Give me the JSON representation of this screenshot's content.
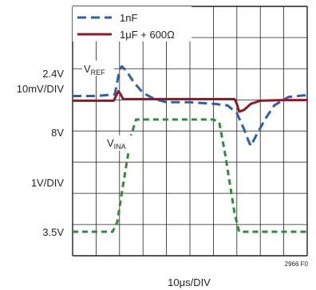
{
  "chart_data": {
    "type": "line",
    "title": "",
    "legend": {
      "placement": "top-left",
      "entries": [
        {
          "name": "1nF",
          "color": "#2f5fa8",
          "style": "dashed"
        },
        {
          "name": "1μF + 600Ω",
          "color": "#8b1a2b",
          "style": "solid"
        }
      ]
    },
    "grid": true,
    "x": {
      "divisions": 10,
      "label": "10μs/DIV"
    },
    "y": {
      "divisions": 8
    },
    "left_labels": [
      {
        "id": "v-ref-offset",
        "text": "2.4V"
      },
      {
        "id": "top-scale",
        "text": "10mV/DIV"
      },
      {
        "id": "v-ina-offset",
        "text": "8V"
      },
      {
        "id": "bottom-scale",
        "text": "1V/DIV"
      },
      {
        "id": "v-ina-low",
        "text": "3.5V"
      }
    ],
    "trace_labels": {
      "vref": {
        "main": "V",
        "sub": "REF"
      },
      "vina": {
        "main": "V",
        "sub": "INA"
      }
    },
    "figure_id": "2966 F0",
    "series": [
      {
        "id": "vref-1nf",
        "name": "1nF",
        "color": "#2f5fa8",
        "style": "dashed",
        "x_div": [
          0,
          1.0,
          1.8,
          1.9,
          2.0,
          2.1,
          2.3,
          2.6,
          3.0,
          3.5,
          4.0,
          5.0,
          6.0,
          6.6,
          7.0,
          7.3,
          7.5,
          7.6,
          7.8,
          8.2,
          8.6,
          9.2,
          10
        ],
        "y_div": [
          0.15,
          0.15,
          0.2,
          0.6,
          1.0,
          1.1,
          0.95,
          0.6,
          0.25,
          0.05,
          -0.05,
          -0.05,
          -0.1,
          -0.15,
          -0.4,
          -0.9,
          -1.3,
          -1.45,
          -1.15,
          -0.6,
          -0.15,
          0.12,
          0.18
        ]
      },
      {
        "id": "vref-1uf-600",
        "name": "1μF + 600Ω",
        "color": "#8b1a2b",
        "style": "solid",
        "x_div": [
          0,
          1.0,
          1.75,
          1.85,
          1.95,
          2.05,
          2.15,
          2.5,
          3.0,
          4.0,
          5.0,
          6.0,
          6.6,
          6.9,
          7.0,
          7.1,
          7.3,
          7.6,
          8.0,
          9.0,
          10
        ],
        "y_div": [
          0.0,
          0.0,
          0.0,
          0.15,
          0.3,
          0.2,
          0.05,
          0.05,
          0.05,
          0.05,
          0.05,
          0.05,
          0.05,
          0.05,
          -0.1,
          -0.35,
          -0.3,
          -0.1,
          0.0,
          0.02,
          0.02
        ]
      },
      {
        "id": "vina",
        "name": "",
        "color": "#2e8b3a",
        "style": "dashed",
        "x_div": [
          0,
          1.7,
          1.9,
          2.15,
          2.5,
          2.7,
          6.0,
          6.25,
          6.5,
          6.9,
          7.1,
          8.0,
          10
        ],
        "y_div": [
          0.0,
          0.0,
          0.3,
          1.5,
          3.1,
          3.6,
          3.6,
          3.5,
          2.5,
          0.6,
          0.0,
          0.0,
          0.0
        ]
      }
    ]
  }
}
